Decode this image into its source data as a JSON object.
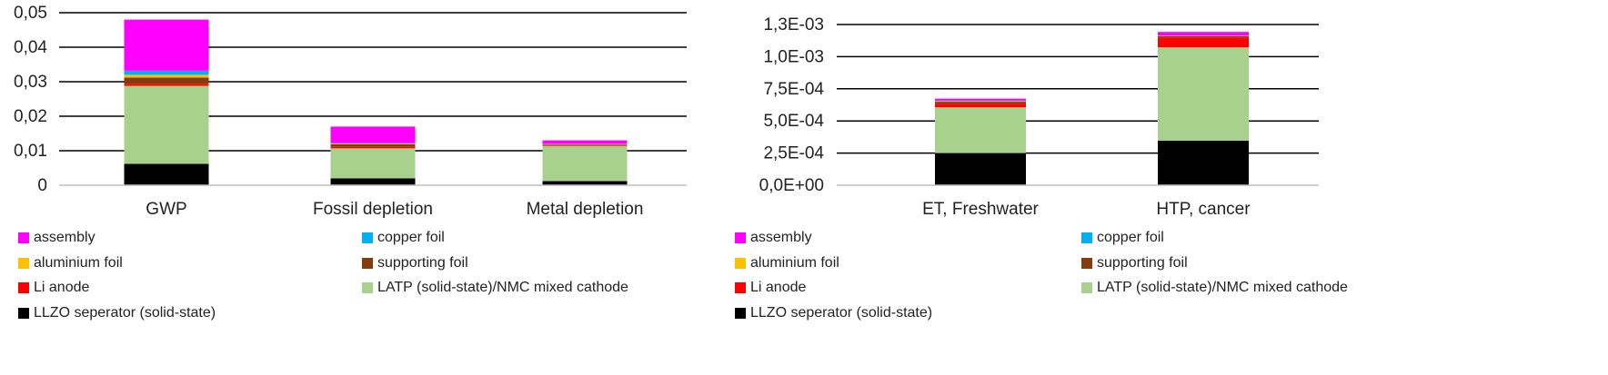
{
  "series_meta": [
    {
      "name": "assembly",
      "color": "#ff00ff"
    },
    {
      "name": "copper foil",
      "color": "#00b0f0"
    },
    {
      "name": "aluminium foil",
      "color": "#ffc000"
    },
    {
      "name": "supporting foil",
      "color": "#843c0c"
    },
    {
      "name": "Li anode",
      "color": "#ff0000"
    },
    {
      "name": "LATP (solid-state)/NMC mixed cathode",
      "color": "#a9d18e"
    },
    {
      "name": "LLZO seperator (solid-state)",
      "color": "#000000"
    }
  ],
  "chart_data": [
    {
      "type": "bar",
      "stacked": true,
      "categories": [
        "GWP",
        "Fossil depletion",
        "Metal depletion"
      ],
      "ylim": [
        0,
        0.05
      ],
      "yticks": [
        "0",
        "0,01",
        "0,02",
        "0,03",
        "0,04",
        "0,05"
      ],
      "grid": true,
      "legend_position": "bottom",
      "series": [
        {
          "name": "LLZO seperator (solid-state)",
          "values": [
            0.0062,
            0.002,
            0.0012
          ]
        },
        {
          "name": "LATP (solid-state)/NMC mixed cathode",
          "values": [
            0.0226,
            0.0087,
            0.0102
          ]
        },
        {
          "name": "Li anode",
          "values": [
            0.0006,
            0.0004,
            0.0002
          ]
        },
        {
          "name": "supporting foil",
          "values": [
            0.0018,
            0.0008,
            0.0002
          ]
        },
        {
          "name": "aluminium foil",
          "values": [
            0.0008,
            0.0002,
            0.0001
          ]
        },
        {
          "name": "copper foil",
          "values": [
            0.0012,
            0.0001,
            0.0001
          ]
        },
        {
          "name": "assembly",
          "values": [
            0.0148,
            0.0048,
            0.001
          ]
        }
      ]
    },
    {
      "type": "bar",
      "stacked": true,
      "categories": [
        "ET, Freshwater",
        "HTP, cancer"
      ],
      "ylim": [
        0,
        0.0013
      ],
      "yticks": [
        "0,0E+00",
        "2,5E-04",
        "5,0E-04",
        "7,5E-04",
        "1,0E-03",
        "1,3E-03"
      ],
      "grid": true,
      "legend_position": "bottom",
      "series": [
        {
          "name": "LLZO seperator (solid-state)",
          "values": [
            0.00026,
            0.00036
          ]
        },
        {
          "name": "LATP (solid-state)/NMC mixed cathode",
          "values": [
            0.00037,
            0.000755
          ]
        },
        {
          "name": "Li anode",
          "values": [
            3e-05,
            8e-05
          ]
        },
        {
          "name": "supporting foil",
          "values": [
            1.5e-05,
            1e-05
          ]
        },
        {
          "name": "aluminium foil",
          "values": [
            5e-06,
            3e-06
          ]
        },
        {
          "name": "copper foil",
          "values": [
            4e-06,
            2e-06
          ]
        },
        {
          "name": "assembly",
          "values": [
            1.6e-05,
            3e-05
          ]
        }
      ]
    }
  ],
  "legend_left": [
    "assembly",
    "copper foil",
    "aluminium foil",
    "supporting foil",
    "Li anode",
    "LATP (solid-state)/NMC mixed cathode",
    "LLZO seperator (solid-state)"
  ],
  "legend_right": [
    "assembly",
    "copper foil",
    "aluminium foil",
    "supporting foil",
    "Li anode",
    "LATP (solid-state)/NMC mixed cathode",
    "LLZO seperator (solid-state)"
  ]
}
